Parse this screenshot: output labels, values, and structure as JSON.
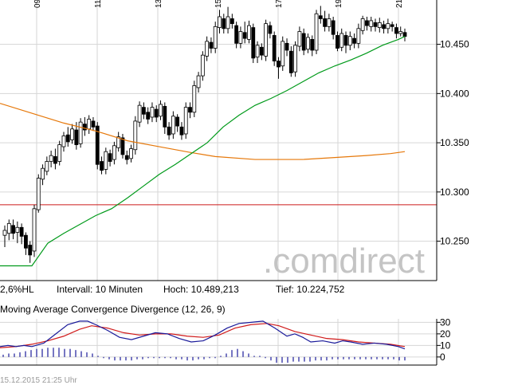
{
  "chart_data": [
    {
      "type": "candlestick",
      "x_ticks": [
        "09",
        "11",
        "13",
        "15",
        "17",
        "19",
        "21"
      ],
      "y_ticks": [
        "10.450",
        "10.400",
        "10.350",
        "10.300",
        "10.250"
      ],
      "y_tick_values": [
        10450,
        10400,
        10350,
        10300,
        10250
      ],
      "ylim": [
        10210,
        10495
      ],
      "grid": true,
      "watermark": ".comdirect",
      "reference_line": 10287,
      "info_bar": {
        "range": "2,6%HL",
        "interval": "Intervall: 10 Minuten",
        "high": "Hoch: 10.489,213",
        "low": "Tief: 10.224,752"
      },
      "colors": {
        "up": "#ffffff",
        "down": "#000000",
        "short_ma": "#009a1a",
        "long_ma": "#e6780a",
        "reference": "#cc1a1a"
      },
      "candles": [
        [
          10256,
          10261,
          10244,
          10266
        ],
        [
          10258,
          10268,
          10251,
          10272
        ],
        [
          10266,
          10258,
          10252,
          10272
        ],
        [
          10259,
          10264,
          10248,
          10270
        ],
        [
          10264,
          10255,
          10247,
          10268
        ],
        [
          10256,
          10243,
          10236,
          10259
        ],
        [
          10246,
          10236,
          10228,
          10250
        ],
        [
          10240,
          10283,
          10234,
          10287
        ],
        [
          10282,
          10314,
          10279,
          10318
        ],
        [
          10313,
          10324,
          10307,
          10328
        ],
        [
          10321,
          10331,
          10317,
          10336
        ],
        [
          10331,
          10337,
          10325,
          10342
        ],
        [
          10336,
          10329,
          10323,
          10344
        ],
        [
          10331,
          10348,
          10327,
          10352
        ],
        [
          10346,
          10357,
          10341,
          10361
        ],
        [
          10358,
          10351,
          10346,
          10366
        ],
        [
          10353,
          10364,
          10349,
          10369
        ],
        [
          10363,
          10348,
          10343,
          10371
        ],
        [
          10349,
          10371,
          10345,
          10375
        ],
        [
          10369,
          10363,
          10357,
          10376
        ],
        [
          10364,
          10374,
          10359,
          10378
        ],
        [
          10372,
          10366,
          10362,
          10376
        ],
        [
          10367,
          10328,
          10323,
          10371
        ],
        [
          10331,
          10322,
          10318,
          10336
        ],
        [
          10323,
          10341,
          10318,
          10345
        ],
        [
          10339,
          10331,
          10326,
          10343
        ],
        [
          10333,
          10347,
          10328,
          10351
        ],
        [
          10345,
          10356,
          10341,
          10361
        ],
        [
          10355,
          10338,
          10334,
          10359
        ],
        [
          10337,
          10333,
          10328,
          10342
        ],
        [
          10334,
          10344,
          10330,
          10348
        ],
        [
          10343,
          10372,
          10338,
          10377
        ],
        [
          10371,
          10388,
          10366,
          10392
        ],
        [
          10386,
          10379,
          10374,
          10391
        ],
        [
          10381,
          10374,
          10369,
          10386
        ],
        [
          10376,
          10386,
          10371,
          10391
        ],
        [
          10384,
          10376,
          10371,
          10388
        ],
        [
          10377,
          10389,
          10373,
          10393
        ],
        [
          10387,
          10366,
          10359,
          10391
        ],
        [
          10366,
          10358,
          10353,
          10371
        ],
        [
          10359,
          10377,
          10354,
          10382
        ],
        [
          10376,
          10367,
          10361,
          10379
        ],
        [
          10366,
          10358,
          10353,
          10371
        ],
        [
          10359,
          10386,
          10354,
          10391
        ],
        [
          10386,
          10381,
          10375,
          10391
        ],
        [
          10381,
          10408,
          10376,
          10413
        ],
        [
          10406,
          10418,
          10401,
          10422
        ],
        [
          10418,
          10439,
          10413,
          10443
        ],
        [
          10438,
          10453,
          10433,
          10458
        ],
        [
          10452,
          10446,
          10441,
          10457
        ],
        [
          10446,
          10468,
          10441,
          10473
        ],
        [
          10467,
          10478,
          10461,
          10485
        ],
        [
          10476,
          10466,
          10461,
          10481
        ],
        [
          10466,
          10478,
          10461,
          10488
        ],
        [
          10476,
          10471,
          10466,
          10481
        ],
        [
          10469,
          10451,
          10446,
          10473
        ],
        [
          10451,
          10463,
          10446,
          10468
        ],
        [
          10462,
          10456,
          10451,
          10473
        ],
        [
          10455,
          10469,
          10451,
          10474
        ],
        [
          10467,
          10436,
          10431,
          10471
        ],
        [
          10437,
          10449,
          10431,
          10453
        ],
        [
          10447,
          10439,
          10434,
          10451
        ],
        [
          10438,
          10471,
          10433,
          10475
        ],
        [
          10469,
          10461,
          10456,
          10473
        ],
        [
          10459,
          10433,
          10428,
          10463
        ],
        [
          10433,
          10427,
          10415,
          10437
        ],
        [
          10428,
          10453,
          10423,
          10458
        ],
        [
          10451,
          10444,
          10438,
          10456
        ],
        [
          10443,
          10421,
          10417,
          10448
        ],
        [
          10422,
          10449,
          10417,
          10453
        ],
        [
          10448,
          10463,
          10443,
          10468
        ],
        [
          10461,
          10444,
          10439,
          10466
        ],
        [
          10445,
          10457,
          10441,
          10461
        ],
        [
          10455,
          10444,
          10438,
          10459
        ],
        [
          10444,
          10481,
          10440,
          10485
        ],
        [
          10479,
          10476,
          10471,
          10489
        ],
        [
          10476,
          10468,
          10463,
          10484
        ],
        [
          10468,
          10476,
          10463,
          10481
        ],
        [
          10474,
          10460,
          10455,
          10478
        ],
        [
          10459,
          10446,
          10443,
          10463
        ],
        [
          10447,
          10461,
          10443,
          10466
        ],
        [
          10459,
          10449,
          10441,
          10463
        ],
        [
          10449,
          10458,
          10444,
          10463
        ],
        [
          10456,
          10451,
          10446,
          10461
        ],
        [
          10451,
          10466,
          10446,
          10471
        ],
        [
          10464,
          10476,
          10460,
          10479
        ],
        [
          10474,
          10469,
          10464,
          10478
        ],
        [
          10468,
          10474,
          10463,
          10478
        ],
        [
          10472,
          10468,
          10463,
          10476
        ],
        [
          10467,
          10472,
          10462,
          10477
        ],
        [
          10470,
          10466,
          10461,
          10474
        ],
        [
          10466,
          10471,
          10461,
          10476
        ],
        [
          10470,
          10468,
          10463,
          10473
        ],
        [
          10467,
          10461,
          10456,
          10471
        ],
        [
          10461,
          10463,
          10458,
          10468
        ],
        [
          10462,
          10458,
          10453,
          10466
        ]
      ],
      "short_ma": [
        [
          0,
          10225
        ],
        [
          40,
          10225
        ],
        [
          60,
          10248
        ],
        [
          80,
          10258
        ],
        [
          100,
          10267
        ],
        [
          120,
          10276
        ],
        [
          140,
          10283
        ],
        [
          160,
          10294
        ],
        [
          180,
          10306
        ],
        [
          200,
          10318
        ],
        [
          220,
          10328
        ],
        [
          240,
          10339
        ],
        [
          260,
          10350
        ],
        [
          280,
          10366
        ],
        [
          300,
          10378
        ],
        [
          320,
          10388
        ],
        [
          340,
          10395
        ],
        [
          360,
          10403
        ],
        [
          380,
          10412
        ],
        [
          400,
          10421
        ],
        [
          420,
          10428
        ],
        [
          440,
          10434
        ],
        [
          460,
          10441
        ],
        [
          480,
          10449
        ],
        [
          500,
          10455
        ],
        [
          508,
          10458
        ]
      ],
      "long_ma": [
        [
          0,
          10390
        ],
        [
          40,
          10380
        ],
        [
          80,
          10370
        ],
        [
          120,
          10362
        ],
        [
          160,
          10352
        ],
        [
          200,
          10346
        ],
        [
          240,
          10340
        ],
        [
          270,
          10336
        ],
        [
          320,
          10333
        ],
        [
          380,
          10333
        ],
        [
          420,
          10335
        ],
        [
          460,
          10337
        ],
        [
          490,
          10339
        ],
        [
          508,
          10341
        ]
      ]
    },
    {
      "type": "macd",
      "title": "Moving Average Convergence Divergence (12, 26, 9)",
      "y_ticks": [
        "30",
        "20",
        "10",
        "0"
      ],
      "y_tick_values": [
        30,
        20,
        10,
        0
      ],
      "ylim": [
        -7,
        33
      ],
      "colors": {
        "macd": "#1a1a9a",
        "signal": "#d01a1a",
        "histogram": "#1a1a9a"
      },
      "macd": [
        [
          0,
          9
        ],
        [
          10,
          10
        ],
        [
          20,
          9
        ],
        [
          30,
          10
        ],
        [
          40,
          9
        ],
        [
          55,
          12
        ],
        [
          70,
          20
        ],
        [
          85,
          28
        ],
        [
          100,
          31
        ],
        [
          110,
          31
        ],
        [
          120,
          28
        ],
        [
          135,
          23
        ],
        [
          150,
          17
        ],
        [
          165,
          15
        ],
        [
          180,
          18
        ],
        [
          195,
          21
        ],
        [
          210,
          20
        ],
        [
          225,
          16
        ],
        [
          240,
          13
        ],
        [
          255,
          14
        ],
        [
          270,
          19
        ],
        [
          285,
          25
        ],
        [
          300,
          29
        ],
        [
          315,
          30
        ],
        [
          330,
          31
        ],
        [
          345,
          25
        ],
        [
          360,
          18
        ],
        [
          370,
          20
        ],
        [
          380,
          17
        ],
        [
          390,
          13
        ],
        [
          405,
          14
        ],
        [
          420,
          12
        ],
        [
          430,
          14
        ],
        [
          440,
          13
        ],
        [
          455,
          11
        ],
        [
          470,
          12
        ],
        [
          485,
          11
        ],
        [
          500,
          9
        ],
        [
          508,
          7
        ]
      ],
      "signal": [
        [
          0,
          8
        ],
        [
          20,
          9
        ],
        [
          40,
          11
        ],
        [
          60,
          14
        ],
        [
          80,
          18
        ],
        [
          100,
          24
        ],
        [
          115,
          27
        ],
        [
          135,
          25
        ],
        [
          155,
          21
        ],
        [
          175,
          19
        ],
        [
          195,
          20
        ],
        [
          215,
          20
        ],
        [
          235,
          18
        ],
        [
          255,
          17
        ],
        [
          275,
          19
        ],
        [
          295,
          25
        ],
        [
          315,
          28
        ],
        [
          335,
          29
        ],
        [
          350,
          27
        ],
        [
          370,
          22
        ],
        [
          390,
          19
        ],
        [
          410,
          16
        ],
        [
          430,
          15
        ],
        [
          450,
          13
        ],
        [
          470,
          12
        ],
        [
          490,
          11
        ],
        [
          508,
          9
        ]
      ],
      "histogram": [
        [
          4,
          2
        ],
        [
          11,
          3
        ],
        [
          18,
          3
        ],
        [
          25,
          4
        ],
        [
          32,
          5
        ],
        [
          39,
          6
        ],
        [
          46,
          7
        ],
        [
          53,
          7
        ],
        [
          60,
          8
        ],
        [
          67,
          8
        ],
        [
          74,
          8
        ],
        [
          81,
          7
        ],
        [
          88,
          7
        ],
        [
          95,
          6
        ],
        [
          102,
          5
        ],
        [
          109,
          4
        ],
        [
          116,
          3
        ],
        [
          123,
          1
        ],
        [
          130,
          -1
        ],
        [
          137,
          -2
        ],
        [
          144,
          -3
        ],
        [
          151,
          -3
        ],
        [
          158,
          -3
        ],
        [
          165,
          -3
        ],
        [
          172,
          -2
        ],
        [
          179,
          -2
        ],
        [
          186,
          -1
        ],
        [
          193,
          -1
        ],
        [
          200,
          -1
        ],
        [
          207,
          -1
        ],
        [
          214,
          -1
        ],
        [
          221,
          -2
        ],
        [
          228,
          -2
        ],
        [
          235,
          -3
        ],
        [
          242,
          -3
        ],
        [
          249,
          -2
        ],
        [
          256,
          -2
        ],
        [
          263,
          -1
        ],
        [
          270,
          -1
        ],
        [
          277,
          1
        ],
        [
          284,
          3
        ],
        [
          291,
          6
        ],
        [
          298,
          7
        ],
        [
          305,
          5
        ],
        [
          312,
          3
        ],
        [
          319,
          1
        ],
        [
          326,
          1
        ],
        [
          333,
          -1
        ],
        [
          340,
          -3
        ],
        [
          347,
          -5
        ],
        [
          354,
          -5
        ],
        [
          361,
          -5
        ],
        [
          368,
          -4
        ],
        [
          375,
          -4
        ],
        [
          382,
          -4
        ],
        [
          389,
          -4
        ],
        [
          396,
          -3
        ],
        [
          403,
          -3
        ],
        [
          410,
          -3
        ],
        [
          417,
          -2
        ],
        [
          424,
          -2
        ],
        [
          431,
          -2
        ],
        [
          438,
          -2
        ],
        [
          445,
          -2
        ],
        [
          452,
          -2
        ],
        [
          459,
          -2
        ],
        [
          466,
          -2
        ],
        [
          473,
          -2
        ],
        [
          480,
          -2
        ],
        [
          487,
          -2
        ],
        [
          494,
          -2
        ],
        [
          501,
          -3
        ],
        [
          508,
          -3
        ]
      ]
    }
  ],
  "footer": {
    "timestamp": "15.12.2015 21:25 Uhr"
  }
}
